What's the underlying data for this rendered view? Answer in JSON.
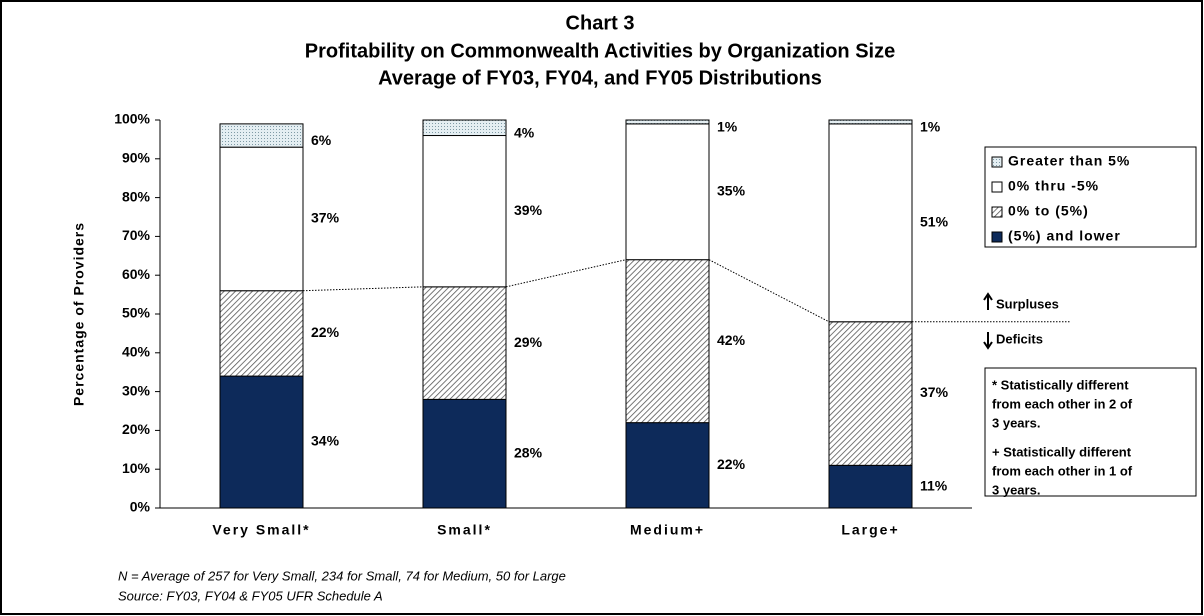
{
  "chart_data": {
    "type": "stacked_bar",
    "title": [
      "Chart 3",
      "Profitability on Commonwealth Activities by Organization Size",
      "Average of FY03, FY04, and FY05 Distributions"
    ],
    "ylabel": "Percentage of Providers",
    "categories": [
      "Very Small*",
      "Small*",
      "Medium+",
      "Large+"
    ],
    "series": [
      {
        "name": "(5%) and lower",
        "color": "#0d2a5a",
        "fill": "solid",
        "values": [
          34,
          28,
          22,
          11
        ],
        "value_labels": [
          "34%",
          "28%",
          "22%",
          "11%"
        ]
      },
      {
        "name": "0% to (5%)",
        "color": "#9a9a9a",
        "fill": "hatch",
        "values": [
          22,
          29,
          42,
          37
        ],
        "value_labels": [
          "22%",
          "29%",
          "42%",
          "37%"
        ]
      },
      {
        "name": "0% thru -5%",
        "color": "#ffffff",
        "fill": "solid",
        "values": [
          37,
          39,
          35,
          51
        ],
        "value_labels": [
          "37%",
          "39%",
          "35%",
          "51%"
        ]
      },
      {
        "name": "Greater than 5%",
        "color": "#b9c9cf",
        "fill": "dots",
        "values": [
          6,
          4,
          1,
          1
        ],
        "value_labels": [
          "6%",
          "4%",
          "1%",
          "1%"
        ]
      }
    ],
    "ylim": [
      0,
      100
    ],
    "yticks": [
      {
        "value": 0,
        "label": "0%"
      },
      {
        "value": 10,
        "label": "10%"
      },
      {
        "value": 20,
        "label": "20%"
      },
      {
        "value": 30,
        "label": "30%"
      },
      {
        "value": 40,
        "label": "40%"
      },
      {
        "value": 50,
        "label": "50%"
      },
      {
        "value": 60,
        "label": "60%"
      },
      {
        "value": 70,
        "label": "70%"
      },
      {
        "value": 80,
        "label": "80%"
      },
      {
        "value": 90,
        "label": "90%"
      },
      {
        "value": 100,
        "label": "100%"
      }
    ],
    "annotations": {
      "surpluses": "Surpluses",
      "deficits": "Deficits"
    },
    "notes": [
      "* Statistically different",
      "from each other in 2 of",
      "3 years.",
      "+ Statistically different",
      "from each other in 1 of",
      "3 years."
    ],
    "footnotes": [
      "N = Average of 257 for Very Small, 234 for Small, 74 for Medium, 50 for Large",
      "Source:  FY03, FY04 & FY05 UFR Schedule A"
    ]
  }
}
